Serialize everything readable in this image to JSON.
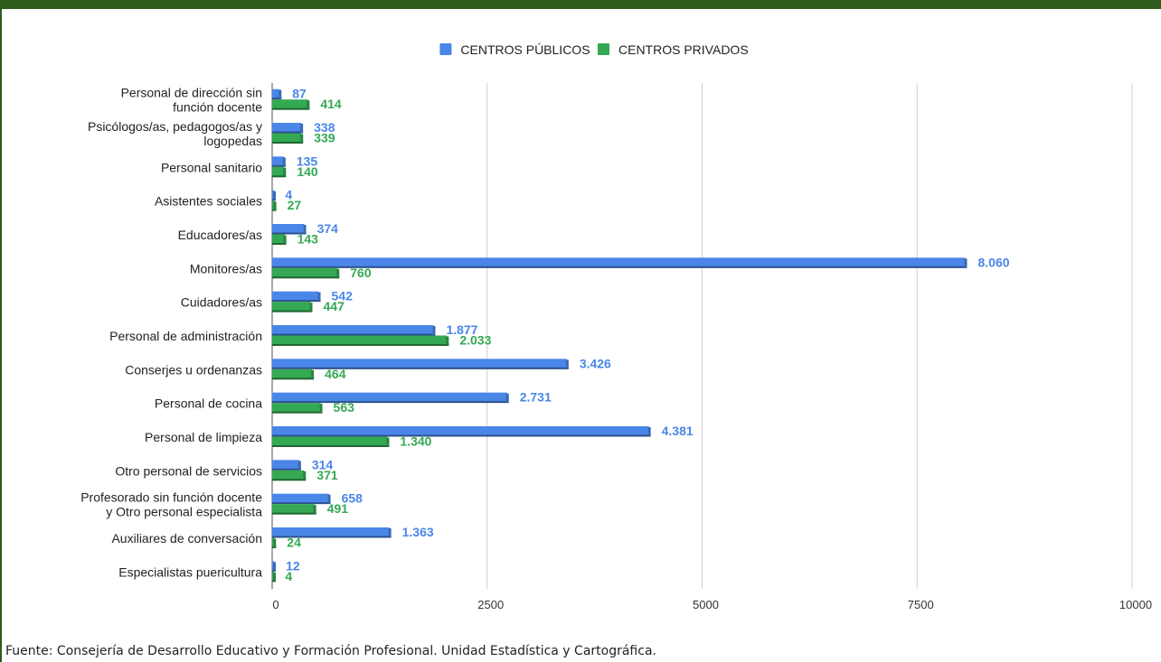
{
  "chart_data": {
    "type": "bar",
    "orientation": "horizontal",
    "categories": [
      [
        "Personal de dirección sin",
        "función docente"
      ],
      [
        "Psicólogos/as, pedagogos/as y",
        "logopedas"
      ],
      [
        "Personal sanitario"
      ],
      [
        "Asistentes sociales"
      ],
      [
        "Educadores/as"
      ],
      [
        "Monitores/as"
      ],
      [
        "Cuidadores/as"
      ],
      [
        "Personal de administración"
      ],
      [
        "Conserjes u ordenanzas"
      ],
      [
        "Personal de cocina"
      ],
      [
        "Personal de limpieza"
      ],
      [
        "Otro personal de servicios"
      ],
      [
        "Profesorado sin función docente",
        "y Otro personal especialista"
      ],
      [
        "Auxiliares de conversación"
      ],
      [
        "Especialistas puericultura"
      ]
    ],
    "series": [
      {
        "name": "CENTROS PÚBLICOS",
        "color": "#4a86e8",
        "values": [
          87,
          338,
          135,
          4,
          374,
          8060,
          542,
          1877,
          3426,
          2731,
          4381,
          314,
          658,
          1363,
          12
        ],
        "labels": [
          "87",
          "338",
          "135",
          "4",
          "374",
          "8.060",
          "542",
          "1.877",
          "3.426",
          "2.731",
          "4.381",
          "314",
          "658",
          "1.363",
          "12"
        ]
      },
      {
        "name": "CENTROS PRIVADOS",
        "color": "#34a853",
        "values": [
          414,
          339,
          140,
          27,
          143,
          760,
          447,
          2033,
          464,
          563,
          1340,
          371,
          491,
          24,
          4
        ],
        "labels": [
          "414",
          "339",
          "140",
          "27",
          "143",
          "760",
          "447",
          "2.033",
          "464",
          "563",
          "1.340",
          "371",
          "491",
          "24",
          "4"
        ]
      }
    ],
    "xlim": [
      0,
      10000
    ],
    "xticks": [
      0,
      2500,
      5000,
      7500,
      10000
    ],
    "xtick_labels": [
      "0",
      "2500",
      "5000",
      "7500",
      "10000"
    ],
    "grid": true,
    "legend_position": "top-center"
  },
  "source": "Fuente: Consejería de Desarrollo Educativo y Formación Profesional. Unidad Estadística y Cartográfica."
}
